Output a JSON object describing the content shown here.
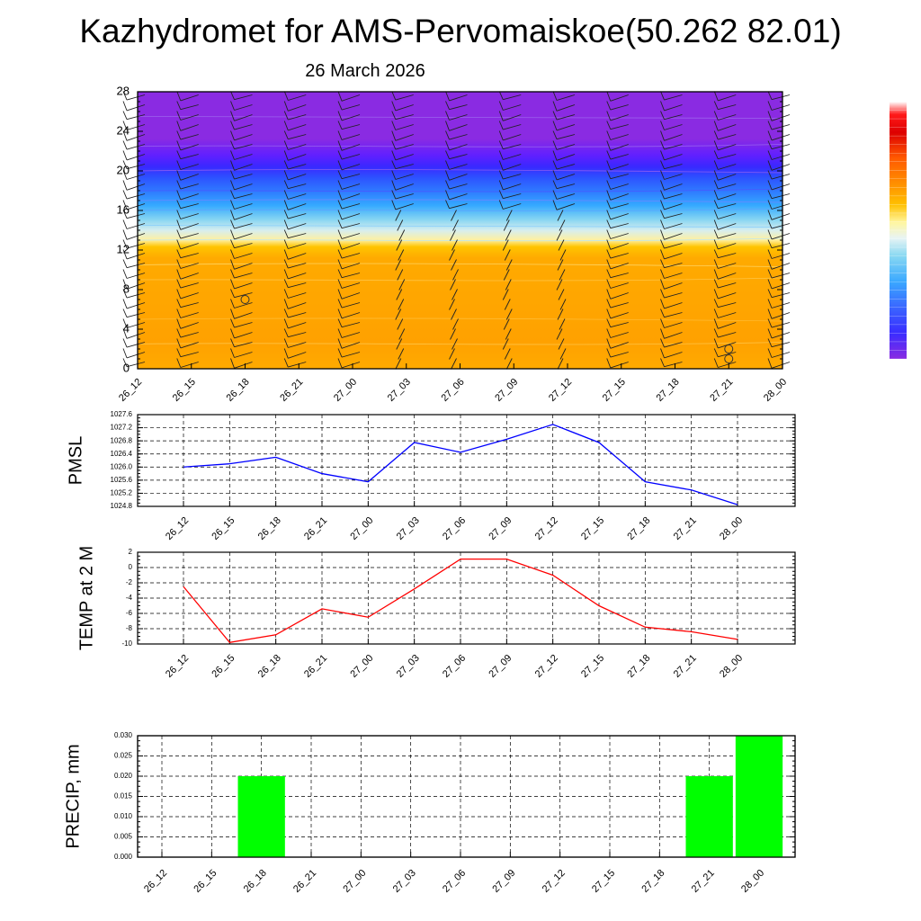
{
  "header": {
    "title": "Kazhydromet for AMS-Pervomaiskoe(50.262 82.01)",
    "date": "26 March 2026"
  },
  "colors": {
    "frame": "#000000",
    "pmsl_line": "#0000ff",
    "temp_line": "#ff0000",
    "precip_bar": "#00ff00",
    "warm_fill": "#ffaa00",
    "cold_fill": "#8a2be2"
  },
  "chart_data": [
    {
      "type": "heatmap",
      "title": "",
      "x": [
        "26_12",
        "26_15",
        "26_18",
        "26_21",
        "27_00",
        "27_03",
        "27_06",
        "27_09",
        "27_12",
        "27_15",
        "27_18",
        "27_21",
        "28_00"
      ],
      "y_ticks": [
        0,
        4,
        8,
        12,
        16,
        20,
        24,
        28
      ],
      "ylim": [
        0,
        28
      ],
      "colorbar": [
        "#8a2be2",
        "#6a10ff",
        "#3b2cff",
        "#2f6bff",
        "#39a8ff",
        "#8ad8f4",
        "#e6f2f2",
        "#fff3a0",
        "#ffd000",
        "#ffb000",
        "#ff9000",
        "#ff6000",
        "#ff2000",
        "#e00000",
        "#ffffff"
      ],
      "bands": [
        {
          "from": 0,
          "to": 11.5,
          "description": "warm"
        },
        {
          "from": 11.5,
          "to": 17.5,
          "description": "transition"
        },
        {
          "from": 17.5,
          "to": 28,
          "description": "cold"
        }
      ],
      "markers": [
        {
          "x": "26_18",
          "y": 7
        },
        {
          "x": "27_21",
          "y": 2
        },
        {
          "x": "27_21",
          "y": 1
        }
      ]
    },
    {
      "type": "line",
      "ylabel": "PMSL",
      "x": [
        "26_12",
        "26_15",
        "26_18",
        "26_21",
        "27_00",
        "27_03",
        "27_06",
        "27_09",
        "27_12",
        "27_15",
        "27_18",
        "27_21",
        "28_00"
      ],
      "values": [
        1026.0,
        1026.1,
        1026.3,
        1025.8,
        1025.55,
        1026.75,
        1026.45,
        1026.85,
        1027.3,
        1026.75,
        1025.55,
        1025.3,
        1024.85
      ],
      "ylim": [
        1024.8,
        1027.6
      ],
      "yticks": [
        "1024.8",
        "1025.2",
        "1025.6",
        "1026.0",
        "1026.4",
        "1026.8",
        "1027.2",
        "1027.6"
      ],
      "grid": true
    },
    {
      "type": "line",
      "ylabel": "TEMP at 2 M",
      "x": [
        "26_12",
        "26_15",
        "26_18",
        "26_21",
        "27_00",
        "27_03",
        "27_06",
        "27_09",
        "27_12",
        "27_15",
        "27_18",
        "27_21",
        "28_00"
      ],
      "values": [
        -2.5,
        -9.8,
        -8.8,
        -5.4,
        -6.5,
        -2.8,
        1.1,
        1.1,
        -1.0,
        -5.0,
        -7.8,
        -8.4,
        -9.4
      ],
      "ylim": [
        -10,
        2
      ],
      "yticks": [
        "-10",
        "-8",
        "-6",
        "-4",
        "-2",
        "0",
        "2"
      ],
      "grid": true
    },
    {
      "type": "bar",
      "ylabel": "PRECIP, mm",
      "categories": [
        "26_12",
        "26_15",
        "26_18",
        "26_21",
        "27_00",
        "27_03",
        "27_06",
        "27_09",
        "27_12",
        "27_15",
        "27_18",
        "27_21",
        "28_00"
      ],
      "values": [
        0,
        0,
        0.02,
        0,
        0,
        0,
        0,
        0,
        0,
        0,
        0,
        0.02,
        0.03
      ],
      "ylim": [
        0,
        0.03
      ],
      "yticks": [
        "0.000",
        "0.005",
        "0.010",
        "0.015",
        "0.020",
        "0.025",
        "0.030"
      ],
      "grid": true
    }
  ]
}
